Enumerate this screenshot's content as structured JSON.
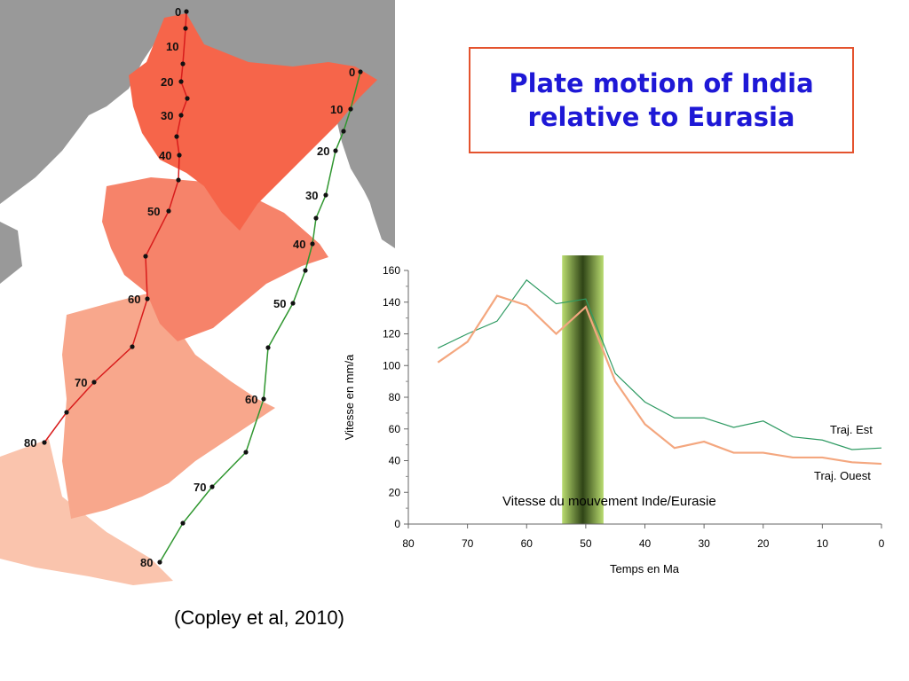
{
  "title": "Plate motion of India\nrelative to Eurasia",
  "citation": "(Copley et al, 2010)",
  "map": {
    "west_track_labels": [
      "0",
      "10",
      "20",
      "30",
      "40",
      "50",
      "60",
      "70",
      "80"
    ],
    "east_track_labels": [
      "0",
      "10",
      "20",
      "30",
      "40",
      "50",
      "60",
      "70",
      "80"
    ],
    "colors": {
      "land": "#999999",
      "sea": "#ffffff",
      "india_0": "#f6654a",
      "india_40": "#f6836a",
      "india_60": "#f8a78c",
      "india_80": "#fac4ad",
      "west_track": "#d81c1c",
      "east_track": "#2f962f"
    }
  },
  "chart_data": {
    "type": "line",
    "title": "Vitesse du mouvement Inde/Eurasie",
    "xlabel": "Temps en Ma",
    "ylabel": "Vitesse en mm/a",
    "xlim": [
      80,
      0
    ],
    "ylim": [
      0,
      160
    ],
    "x_ticks": [
      80,
      70,
      60,
      50,
      40,
      30,
      20,
      10,
      0
    ],
    "y_ticks": [
      0,
      20,
      40,
      60,
      80,
      100,
      120,
      140,
      160
    ],
    "highlight_band": {
      "x_from": 54,
      "x_to": 47,
      "color": "#9ccc3c"
    },
    "series": [
      {
        "name": "Traj. Est",
        "color": "#2e9a62",
        "x": [
          75,
          70,
          65,
          60,
          55,
          50,
          45,
          40,
          35,
          30,
          25,
          20,
          15,
          10,
          5,
          0
        ],
        "values": [
          111,
          120,
          128,
          154,
          139,
          142,
          95,
          77,
          67,
          67,
          61,
          65,
          55,
          53,
          47,
          48
        ]
      },
      {
        "name": "Traj. Ouest",
        "color": "#f4a77f",
        "x": [
          75,
          70,
          65,
          60,
          55,
          50,
          45,
          40,
          35,
          30,
          25,
          20,
          15,
          10,
          5,
          0
        ],
        "values": [
          102,
          115,
          144,
          138,
          120,
          137,
          90,
          63,
          48,
          52,
          45,
          45,
          42,
          42,
          39,
          38
        ]
      }
    ]
  }
}
